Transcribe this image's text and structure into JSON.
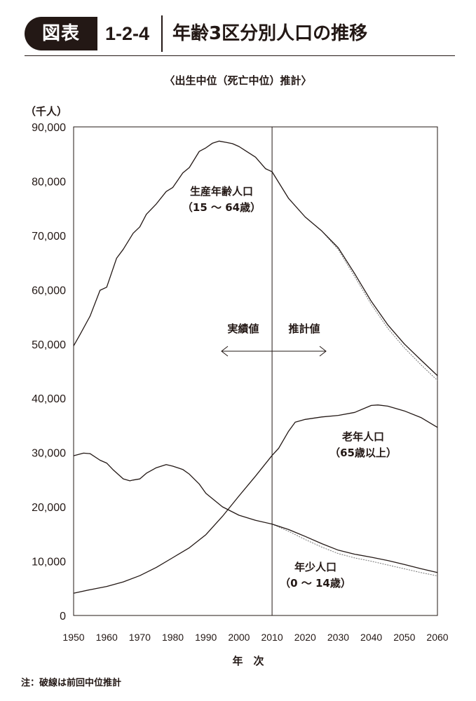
{
  "header": {
    "badge": "図表",
    "figure_number": "1-2-4",
    "title": "年齢3区分別人口の推移"
  },
  "note": "注：破線は前回中位推計",
  "colors": {
    "ink": "#231815",
    "projection_line": "#777777"
  },
  "chart_data": {
    "type": "line",
    "title": "〈出生中位（死亡中位）推計〉",
    "ylabel": "（千人）",
    "xlabel": "年　次",
    "xlim": [
      1950,
      2060
    ],
    "ylim": [
      0,
      90000
    ],
    "x_ticks": [
      1950,
      1960,
      1970,
      1980,
      1990,
      2000,
      2010,
      2020,
      2030,
      2040,
      2050,
      2060
    ],
    "y_ticks": [
      {
        "value": 0,
        "label": "0"
      },
      {
        "value": 10000,
        "label": "10,000"
      },
      {
        "value": 20000,
        "label": "20,000"
      },
      {
        "value": 30000,
        "label": "30,000"
      },
      {
        "value": 40000,
        "label": "40,000"
      },
      {
        "value": 50000,
        "label": "50,000"
      },
      {
        "value": 60000,
        "label": "60,000"
      },
      {
        "value": 70000,
        "label": "70,000"
      },
      {
        "value": 80000,
        "label": "80,000"
      },
      {
        "value": 90000,
        "label": "90,000"
      }
    ],
    "grid": false,
    "divider_year": 2010,
    "divider_labels": {
      "actual": "実績値",
      "projected": "推計値"
    },
    "series": [
      {
        "name": "生産年齢人口",
        "name_sub": "（15 ～ 64歳）",
        "points": [
          [
            1950,
            49660
          ],
          [
            1952,
            51800
          ],
          [
            1955,
            55170
          ],
          [
            1958,
            59900
          ],
          [
            1960,
            60470
          ],
          [
            1963,
            65800
          ],
          [
            1965,
            67440
          ],
          [
            1968,
            70400
          ],
          [
            1970,
            71570
          ],
          [
            1972,
            73900
          ],
          [
            1975,
            75810
          ],
          [
            1978,
            78100
          ],
          [
            1980,
            78840
          ],
          [
            1983,
            81500
          ],
          [
            1985,
            82510
          ],
          [
            1988,
            85500
          ],
          [
            1990,
            86140
          ],
          [
            1992,
            87000
          ],
          [
            1994,
            87380
          ],
          [
            1996,
            87160
          ],
          [
            1998,
            86920
          ],
          [
            2000,
            86380
          ],
          [
            2002,
            85600
          ],
          [
            2005,
            84420
          ],
          [
            2008,
            82300
          ],
          [
            2010,
            81730
          ],
          [
            2015,
            76820
          ],
          [
            2020,
            73410
          ],
          [
            2025,
            70840
          ],
          [
            2030,
            67730
          ],
          [
            2035,
            62950
          ],
          [
            2040,
            57870
          ],
          [
            2045,
            53530
          ],
          [
            2050,
            50010
          ],
          [
            2055,
            47060
          ],
          [
            2060,
            44180
          ]
        ],
        "previous_projection": [
          [
            2010,
            81730
          ],
          [
            2015,
            76820
          ],
          [
            2020,
            73410
          ],
          [
            2025,
            70840
          ],
          [
            2030,
            67400
          ],
          [
            2035,
            62400
          ],
          [
            2040,
            57300
          ],
          [
            2045,
            52900
          ],
          [
            2050,
            49300
          ],
          [
            2055,
            46200
          ],
          [
            2060,
            43300
          ]
        ]
      },
      {
        "name": "老年人口",
        "name_sub": "（65歳以上）",
        "points": [
          [
            1950,
            4110
          ],
          [
            1955,
            4750
          ],
          [
            1960,
            5350
          ],
          [
            1965,
            6180
          ],
          [
            1970,
            7330
          ],
          [
            1975,
            8860
          ],
          [
            1980,
            10650
          ],
          [
            1985,
            12470
          ],
          [
            1990,
            14890
          ],
          [
            1995,
            18260
          ],
          [
            2000,
            22010
          ],
          [
            2005,
            25670
          ],
          [
            2010,
            29480
          ],
          [
            2012,
            30800
          ],
          [
            2015,
            33950
          ],
          [
            2017,
            35600
          ],
          [
            2020,
            36120
          ],
          [
            2025,
            36570
          ],
          [
            2030,
            36850
          ],
          [
            2035,
            37410
          ],
          [
            2040,
            38680
          ],
          [
            2042,
            38780
          ],
          [
            2045,
            38560
          ],
          [
            2050,
            37680
          ],
          [
            2055,
            36460
          ],
          [
            2060,
            34640
          ]
        ]
      },
      {
        "name": "年少人口",
        "name_sub": "（0 ～ 14歳）",
        "points": [
          [
            1950,
            29430
          ],
          [
            1953,
            29900
          ],
          [
            1955,
            29800
          ],
          [
            1958,
            28600
          ],
          [
            1960,
            28070
          ],
          [
            1962,
            26800
          ],
          [
            1965,
            25170
          ],
          [
            1967,
            24800
          ],
          [
            1968,
            24950
          ],
          [
            1970,
            25150
          ],
          [
            1972,
            26200
          ],
          [
            1975,
            27220
          ],
          [
            1978,
            27800
          ],
          [
            1980,
            27510
          ],
          [
            1983,
            26900
          ],
          [
            1985,
            26030
          ],
          [
            1988,
            24200
          ],
          [
            1990,
            22490
          ],
          [
            1995,
            20010
          ],
          [
            2000,
            18470
          ],
          [
            2005,
            17520
          ],
          [
            2010,
            16840
          ],
          [
            2015,
            15830
          ],
          [
            2020,
            14570
          ],
          [
            2025,
            13240
          ],
          [
            2030,
            12040
          ],
          [
            2035,
            11290
          ],
          [
            2040,
            10730
          ],
          [
            2045,
            10120
          ],
          [
            2050,
            9390
          ],
          [
            2055,
            8610
          ],
          [
            2060,
            7910
          ]
        ],
        "previous_projection": [
          [
            2010,
            16840
          ],
          [
            2015,
            15500
          ],
          [
            2020,
            14000
          ],
          [
            2025,
            12600
          ],
          [
            2030,
            11400
          ],
          [
            2035,
            10600
          ],
          [
            2040,
            10000
          ],
          [
            2045,
            9300
          ],
          [
            2050,
            8600
          ],
          [
            2055,
            7900
          ],
          [
            2060,
            7300
          ]
        ]
      }
    ]
  }
}
